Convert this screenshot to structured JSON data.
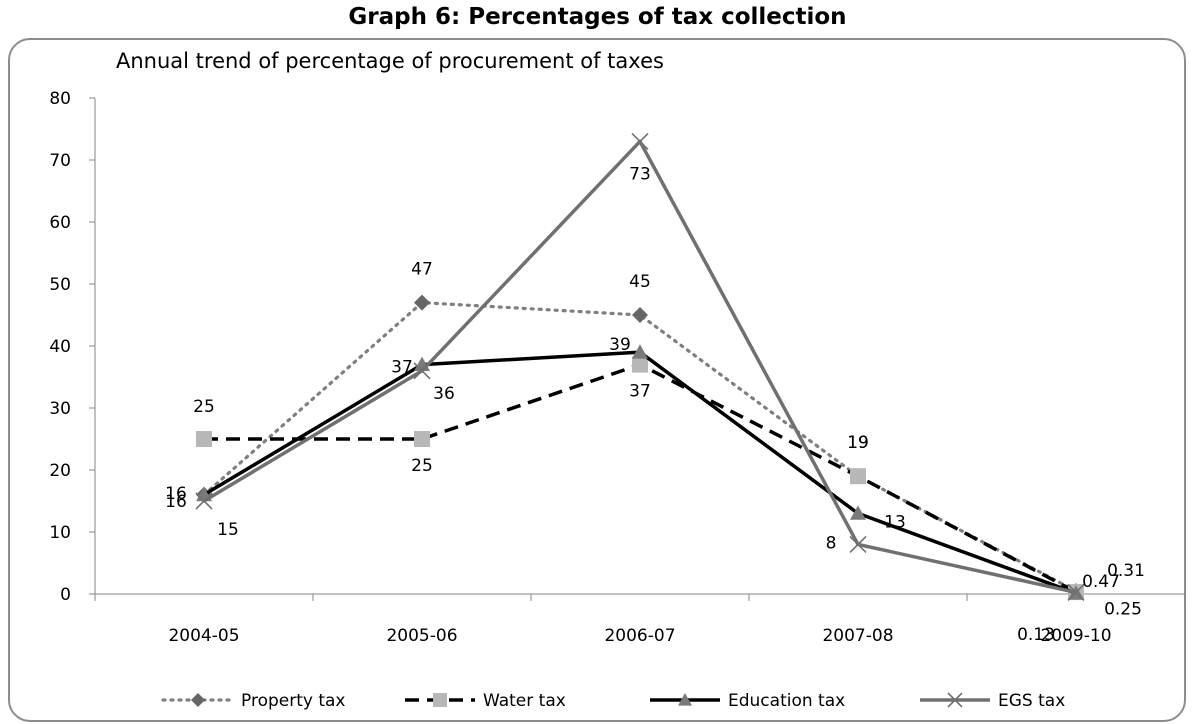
{
  "page": {
    "heading": "Graph 6: Percentages of tax collection"
  },
  "chart_data": {
    "type": "line",
    "title": "Annual trend of percentage of procurement of taxes",
    "xlabel": "",
    "ylabel": "",
    "categories": [
      "2004-05",
      "2005-06",
      "2006-07",
      "2007-08",
      "2009-10"
    ],
    "ylim": [
      0,
      80
    ],
    "yticks": [
      0,
      10,
      20,
      30,
      40,
      50,
      60,
      70,
      80
    ],
    "grid": false,
    "legend": "bottom",
    "series": [
      {
        "name": "Property tax",
        "values": [
          16,
          47,
          45,
          19,
          0.47
        ],
        "labels": [
          "16",
          "47",
          "45",
          "19",
          "0.47"
        ],
        "color": "#7f7f7f",
        "dash": "dotted",
        "marker": "diamond"
      },
      {
        "name": "Water tax",
        "values": [
          25,
          25,
          37,
          19,
          0.31
        ],
        "labels": [
          "25",
          "25",
          "37",
          "19",
          "0.31"
        ],
        "color": "#000000",
        "dash": "dashed",
        "marker": "square"
      },
      {
        "name": "Education tax",
        "values": [
          16,
          37,
          39,
          13,
          0.13
        ],
        "labels": [
          "16",
          "37",
          "39",
          "13",
          "0.13"
        ],
        "color": "#000000",
        "dash": "solid",
        "marker": "triangle"
      },
      {
        "name": "EGS tax",
        "values": [
          15,
          36,
          73,
          8,
          0.25
        ],
        "labels": [
          "15",
          "36",
          "73",
          "8",
          "0.25"
        ],
        "color": "#707070",
        "dash": "solid",
        "marker": "x"
      }
    ]
  }
}
